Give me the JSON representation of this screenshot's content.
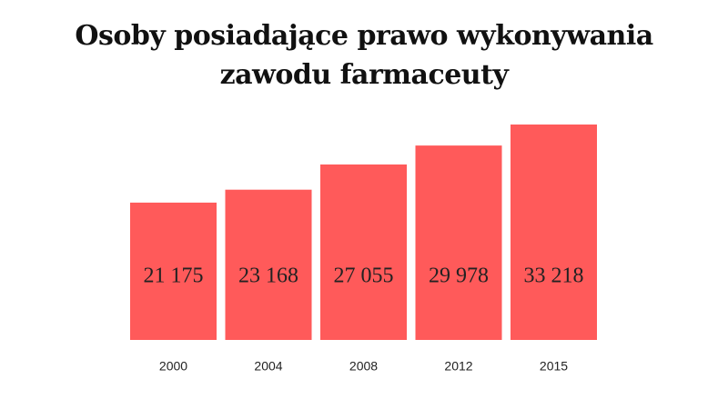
{
  "chart_data": {
    "type": "bar",
    "title": "Osoby posiadające prawo wykonywania zawodu farmaceuty",
    "categories": [
      "2000",
      "2004",
      "2008",
      "2012",
      "2015"
    ],
    "values": [
      21175,
      23168,
      27055,
      29978,
      33218
    ],
    "value_labels": [
      "21 175",
      "23 168",
      "27 055",
      "29 978",
      "33 218"
    ],
    "color": "#ff5a5a"
  }
}
